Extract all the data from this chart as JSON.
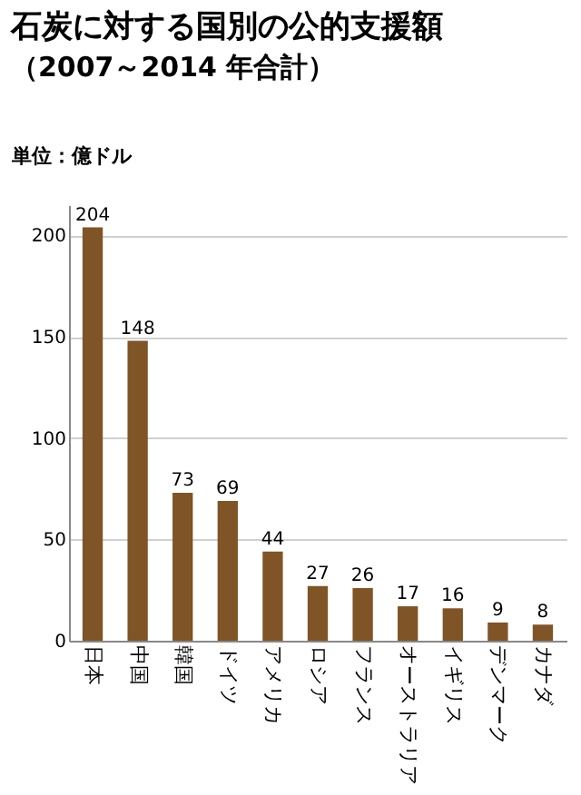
{
  "chart_data": {
    "type": "bar",
    "title": "石炭に対する国別の公的支援額",
    "subtitle": "（2007～2014 年合計）",
    "ylabel": "単位：億ドル",
    "categories": [
      "日本",
      "中国",
      "韓国",
      "ドイツ",
      "アメリカ",
      "ロシア",
      "フランス",
      "オーストラリア",
      "イギリス",
      "デンマーク",
      "カナダ"
    ],
    "values": [
      204,
      148,
      73,
      69,
      44,
      27,
      26,
      17,
      16,
      9,
      8
    ],
    "color": "#7f5427",
    "ylim": [
      0,
      215
    ],
    "yticks": [
      0,
      50,
      100,
      150,
      200
    ],
    "grid": "y",
    "data_labels": true
  }
}
